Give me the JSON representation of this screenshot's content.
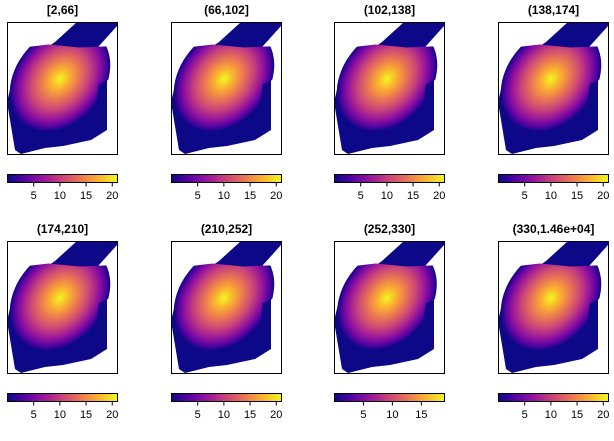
{
  "chart_data": {
    "type": "heatmap",
    "description_layout": "2 rows x 4 columns of small-multiple density maps, each with a horizontal color legend below",
    "colormap": [
      "#0d0887",
      "#5b02a3",
      "#9a179b",
      "#cb4678",
      "#eb7852",
      "#fbb32f",
      "#f0f921"
    ],
    "background_fill": "#0d0887",
    "panels": [
      {
        "title": "[2,66]",
        "legend_ticks": [
          5,
          10,
          15,
          20
        ],
        "legend_range": [
          0,
          21
        ],
        "peak": 21
      },
      {
        "title": "(66,102]",
        "legend_ticks": [
          5,
          10,
          15,
          20
        ],
        "legend_range": [
          0,
          21
        ],
        "peak": 21
      },
      {
        "title": "(102,138]",
        "legend_ticks": [
          5,
          10,
          15,
          20
        ],
        "legend_range": [
          0,
          21
        ],
        "peak": 21
      },
      {
        "title": "(138,174]",
        "legend_ticks": [
          5,
          10,
          15,
          20
        ],
        "legend_range": [
          0,
          21
        ],
        "peak": 21
      },
      {
        "title": "(174,210]",
        "legend_ticks": [
          5,
          10,
          15,
          20
        ],
        "legend_range": [
          0,
          21
        ],
        "peak": 21
      },
      {
        "title": "(210,252]",
        "legend_ticks": [
          5,
          10,
          15,
          20
        ],
        "legend_range": [
          0,
          21
        ],
        "peak": 21
      },
      {
        "title": "(252,330]",
        "legend_ticks": [
          5,
          10,
          15
        ],
        "legend_range": [
          0,
          19
        ],
        "peak": 19
      },
      {
        "title": "(330,1.46e+04]",
        "legend_ticks": [
          5,
          10,
          15,
          20
        ],
        "legend_range": [
          0,
          21
        ],
        "peak": 21
      }
    ]
  }
}
